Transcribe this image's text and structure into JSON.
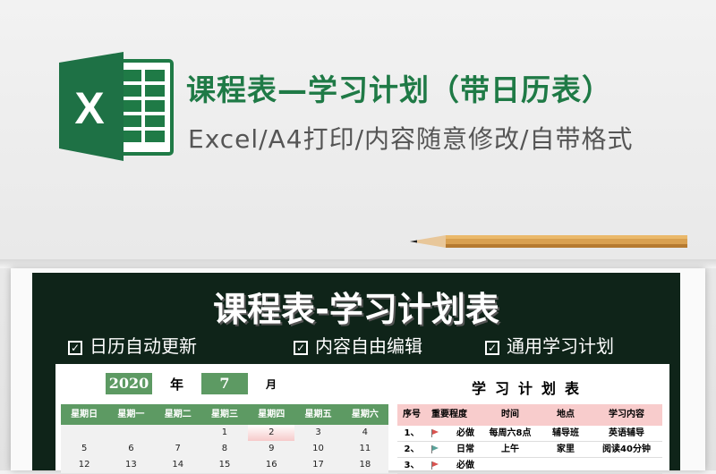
{
  "header": {
    "title": "课程表—学习计划（带日历表）",
    "subtitle": "Excel/A4打印/内容随意修改/自带格式",
    "logo_letter": "X"
  },
  "colors": {
    "brand_green": "#1f7a46",
    "panel_dark": "#0f2419",
    "calendar_green": "#5d9a63",
    "plan_header_pink": "#f8cccc",
    "flag_red": "#d9534f",
    "flag_teal": "#5aa39a"
  },
  "preview": {
    "title": "课程表-学习计划表",
    "features": [
      {
        "label": "日历自动更新",
        "checked": true
      },
      {
        "label": "内容自由编辑",
        "checked": true
      },
      {
        "label": "通用学习计划",
        "checked": true
      }
    ],
    "calendar": {
      "year": "2020",
      "year_label": "年",
      "month": "7",
      "month_label": "月",
      "weekdays": [
        "星期日",
        "星期一",
        "星期二",
        "星期三",
        "星期四",
        "星期五",
        "星期六"
      ],
      "weeks": [
        [
          "",
          "",
          "",
          "1",
          "2",
          "3",
          "4"
        ],
        [
          "5",
          "6",
          "7",
          "8",
          "9",
          "10",
          "11"
        ],
        [
          "12",
          "13",
          "14",
          "15",
          "16",
          "17",
          "18"
        ]
      ],
      "highlighted_day": "2"
    },
    "plan": {
      "title": "学习计划表",
      "columns": [
        "序号",
        "重要程度",
        "时间",
        "地点",
        "学习内容"
      ],
      "rows": [
        {
          "no": "1、",
          "flag": "red",
          "importance": "必做",
          "time": "每周六8点",
          "place": "辅导班",
          "content": "英语辅导"
        },
        {
          "no": "2、",
          "flag": "teal",
          "importance": "日常",
          "time": "上午",
          "place": "家里",
          "content": "阅读40分钟"
        },
        {
          "no": "3、",
          "flag": "red",
          "importance": "必做",
          "time": "",
          "place": "",
          "content": ""
        }
      ]
    }
  }
}
